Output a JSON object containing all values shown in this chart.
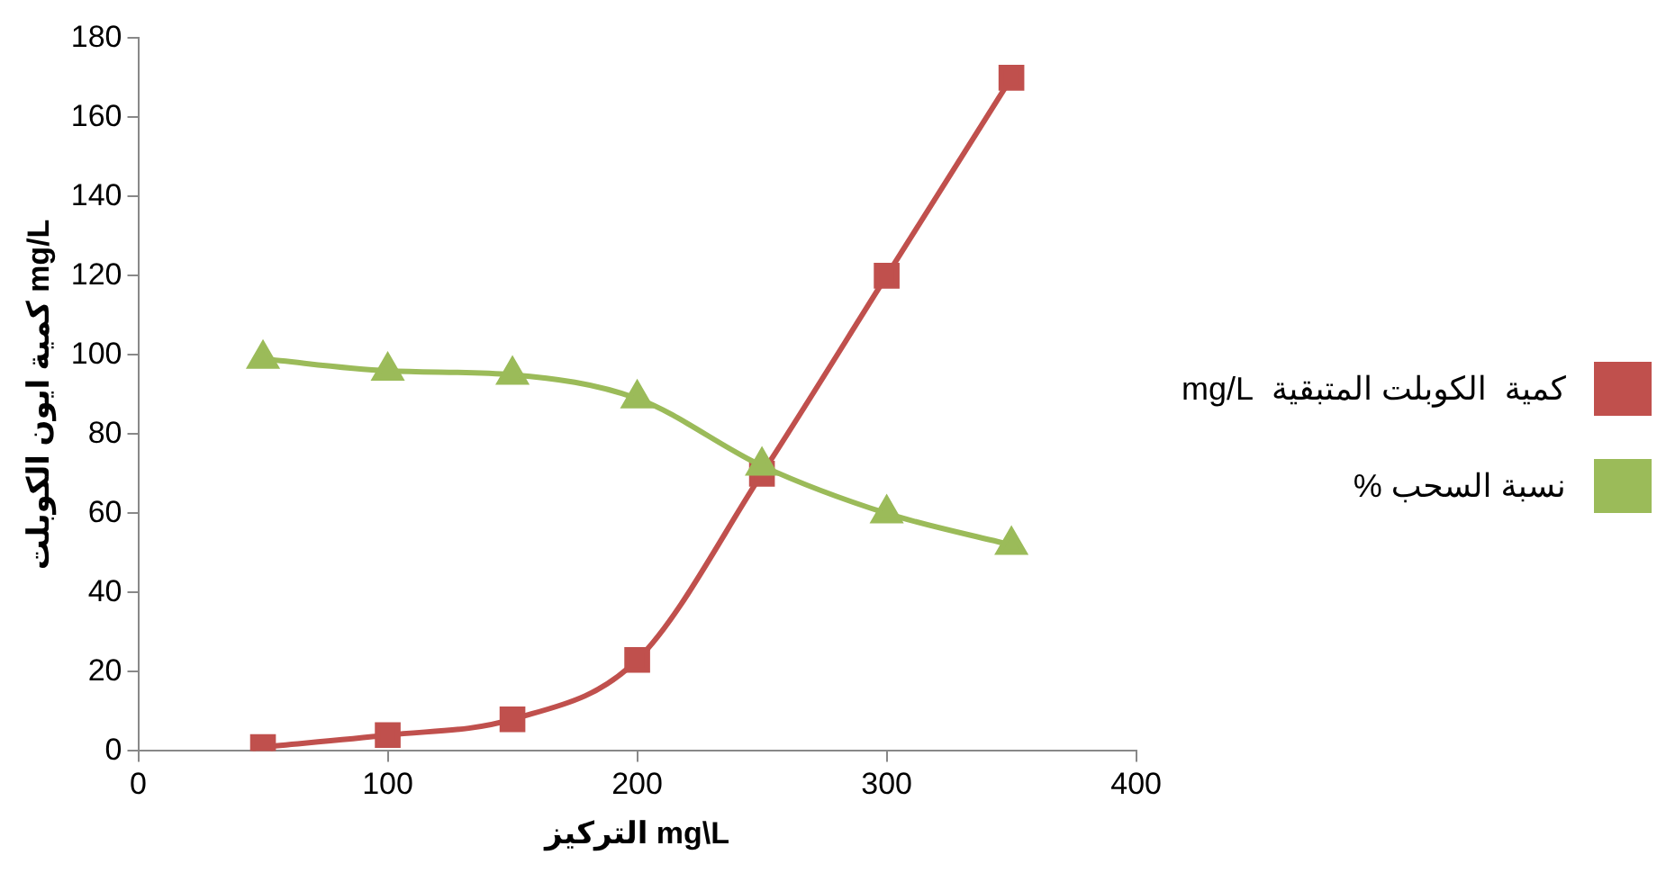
{
  "chart_data": {
    "type": "line",
    "xlabel": "التركيز mg\\L",
    "ylabel": "كمية ايون الكوبلت mg/L",
    "x": [
      50,
      100,
      150,
      200,
      250,
      300,
      350
    ],
    "series": [
      {
        "name": "كمية  الكوبلت المتبقية  mg/L",
        "color": "#c0504d",
        "marker": "square",
        "values": [
          1,
          4,
          8,
          23,
          70,
          120,
          170
        ]
      },
      {
        "name": "نسبة السحب %",
        "color": "#9bbb59",
        "marker": "triangle",
        "values": [
          99,
          96,
          95,
          89,
          72,
          60,
          52
        ]
      }
    ],
    "xlim": [
      0,
      400
    ],
    "xticks": [
      0,
      100,
      200,
      300,
      400
    ],
    "ylim": [
      0,
      180
    ],
    "yticks": [
      0,
      20,
      40,
      60,
      80,
      100,
      120,
      140,
      160,
      180
    ],
    "grid": false,
    "legend": "right",
    "line_style": "solid"
  }
}
